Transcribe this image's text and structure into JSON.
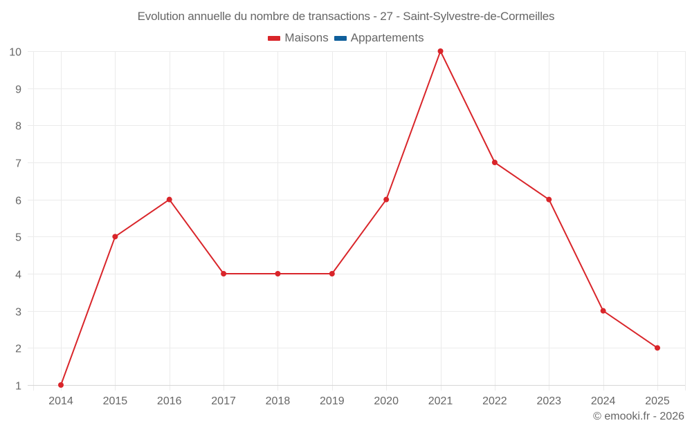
{
  "header": {
    "title": "Evolution annuelle du nombre de transactions - 27 - Saint-Sylvestre-de-Cormeilles"
  },
  "legend": [
    {
      "label": "Maisons",
      "color": "#d9252a"
    },
    {
      "label": "Appartements",
      "color": "#0f5f9b"
    }
  ],
  "footer": {
    "credit": "© emooki.fr - 2026"
  },
  "colors": {
    "grid": "#ebebeb",
    "axis": "#d6d6d6",
    "text": "#666666",
    "maisons": "#d9252a",
    "appartements": "#0f5f9b"
  },
  "chart_data": {
    "type": "line",
    "title": "Evolution annuelle du nombre de transactions - 27 - Saint-Sylvestre-de-Cormeilles",
    "xlabel": "",
    "ylabel": "",
    "categories": [
      "2014",
      "2015",
      "2016",
      "2017",
      "2018",
      "2019",
      "2020",
      "2021",
      "2022",
      "2023",
      "2024",
      "2025"
    ],
    "series": [
      {
        "name": "Maisons",
        "color": "#d9252a",
        "values": [
          1,
          5,
          6,
          4,
          4,
          4,
          6,
          10,
          7,
          6,
          3,
          2
        ]
      },
      {
        "name": "Appartements",
        "color": "#0f5f9b",
        "values": []
      }
    ],
    "yticks": [
      1,
      2,
      3,
      4,
      5,
      6,
      7,
      8,
      9,
      10
    ],
    "ylim": [
      1,
      10
    ],
    "grid": true,
    "legend_position": "top-center"
  }
}
